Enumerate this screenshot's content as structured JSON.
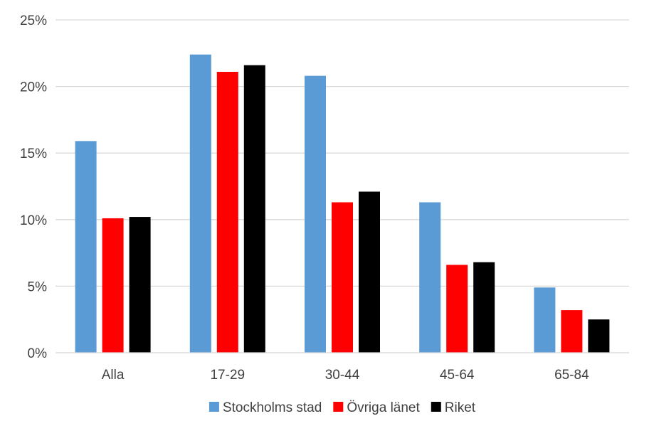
{
  "chart_data": {
    "type": "bar",
    "categories": [
      "Alla",
      "17-29",
      "30-44",
      "45-64",
      "65-84"
    ],
    "series": [
      {
        "name": "Stockholms stad",
        "color": "#5B9BD5",
        "values": [
          15.9,
          22.4,
          20.8,
          11.3,
          4.9
        ]
      },
      {
        "name": "Övriga länet",
        "color": "#FF0000",
        "values": [
          10.1,
          21.1,
          11.3,
          6.6,
          3.2
        ]
      },
      {
        "name": "Riket",
        "color": "#000000",
        "values": [
          10.2,
          21.6,
          12.1,
          6.8,
          2.5
        ]
      }
    ],
    "y_ticks": [
      "0%",
      "5%",
      "10%",
      "15%",
      "20%",
      "25%"
    ],
    "ylim": [
      0,
      25
    ],
    "grid": true,
    "legend_position": "bottom",
    "title": "",
    "xlabel": "",
    "ylabel": ""
  }
}
